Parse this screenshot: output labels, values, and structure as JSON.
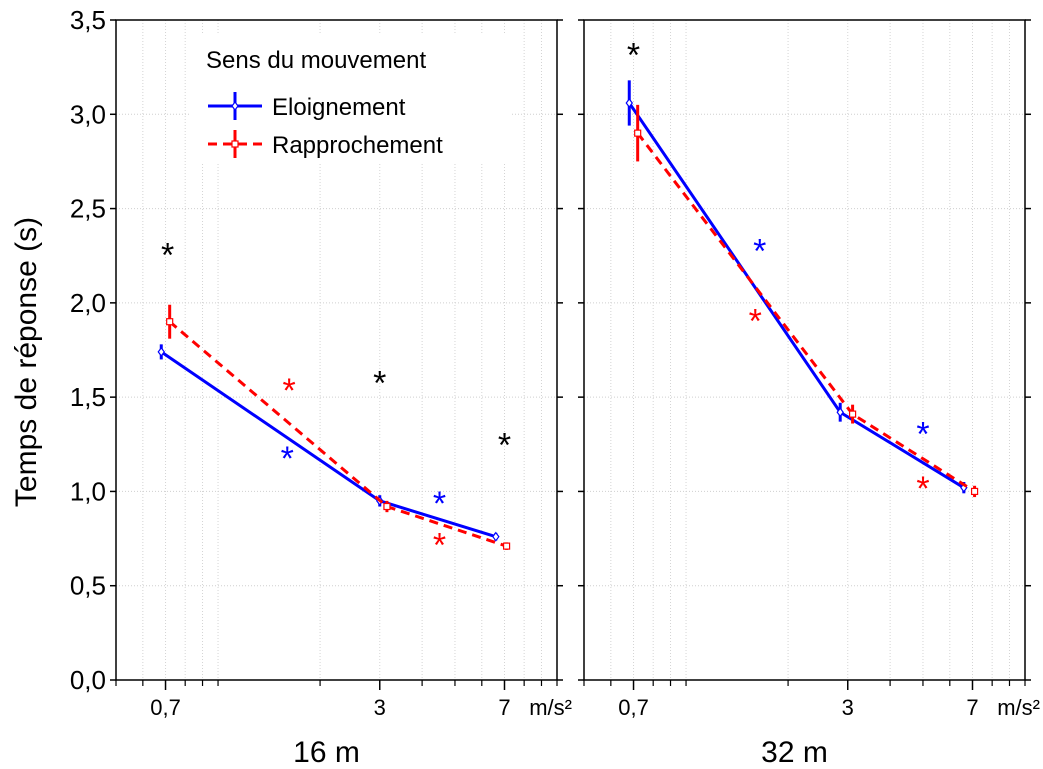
{
  "chart_data": {
    "type": "line",
    "ylabel": "Temps de réponse (s)",
    "ylim": [
      0,
      3.5
    ],
    "yticks": [
      "0,0",
      "0,5",
      "1,0",
      "1,5",
      "2,0",
      "2,5",
      "3,0",
      "3,5"
    ],
    "yticks_values": [
      0,
      0.5,
      1,
      1.5,
      2,
      2.5,
      3,
      3.5
    ],
    "x_scale": "log",
    "xlim": [
      0.5,
      10
    ],
    "xticks": [
      {
        "value": 0.7,
        "label": "0,7"
      },
      {
        "value": 3,
        "label": "3"
      },
      {
        "value": 7,
        "label": "7"
      }
    ],
    "x_unit": "m/s²",
    "x_minor_ticks": [
      0.5,
      0.6,
      0.8,
      0.9,
      1,
      2,
      4,
      5,
      6,
      8,
      9,
      10
    ],
    "grid": true,
    "legend": {
      "title": "Sens du mouvement",
      "placement": "top-right of left panel",
      "entries": [
        {
          "label": "Eloignement",
          "color": "#0000ff",
          "dash": "solid"
        },
        {
          "label": "Rapprochement",
          "color": "#ff0000",
          "dash": "dashed"
        }
      ]
    },
    "panels": [
      {
        "title": "16 m",
        "series": [
          {
            "name": "Eloignement",
            "x": [
              0.68,
              3,
              6.6
            ],
            "y": [
              1.74,
              0.95,
              0.76
            ],
            "err": [
              0.04,
              0.03,
              0.02
            ]
          },
          {
            "name": "Rapprochement",
            "x": [
              0.72,
              3.15,
              7.1
            ],
            "y": [
              1.9,
              0.92,
              0.71
            ],
            "err": [
              0.09,
              0.03,
              0.02
            ]
          }
        ],
        "annotations": [
          {
            "text": "*",
            "color": "#000000",
            "x": 0.71,
            "y": 2.3
          },
          {
            "text": "*",
            "color": "#0000ff",
            "x": 1.6,
            "y": 1.22
          },
          {
            "text": "*",
            "color": "#ff0000",
            "x": 1.62,
            "y": 1.58
          },
          {
            "text": "*",
            "color": "#000000",
            "x": 3,
            "y": 1.62
          },
          {
            "text": "*",
            "color": "#0000ff",
            "x": 4.5,
            "y": 0.98
          },
          {
            "text": "*",
            "color": "#ff0000",
            "x": 4.5,
            "y": 0.76
          },
          {
            "text": "*",
            "color": "#000000",
            "x": 7,
            "y": 1.29
          }
        ]
      },
      {
        "title": "32 m",
        "series": [
          {
            "name": "Eloignement",
            "x": [
              0.68,
              2.85,
              6.6
            ],
            "y": [
              3.06,
              1.42,
              1.02
            ],
            "err": [
              0.12,
              0.05,
              0.03
            ]
          },
          {
            "name": "Rapprochement",
            "x": [
              0.72,
              3.1,
              7.1
            ],
            "y": [
              2.9,
              1.41,
              1.0
            ],
            "err": [
              0.15,
              0.05,
              0.03
            ]
          }
        ],
        "annotations": [
          {
            "text": "*",
            "color": "#000000",
            "x": 0.7,
            "y": 3.36
          },
          {
            "text": "*",
            "color": "#0000ff",
            "x": 1.65,
            "y": 2.32
          },
          {
            "text": "*",
            "color": "#ff0000",
            "x": 1.6,
            "y": 1.95
          },
          {
            "text": "*",
            "color": "#0000ff",
            "x": 5,
            "y": 1.35
          },
          {
            "text": "*",
            "color": "#ff0000",
            "x": 5,
            "y": 1.06
          }
        ]
      }
    ]
  }
}
